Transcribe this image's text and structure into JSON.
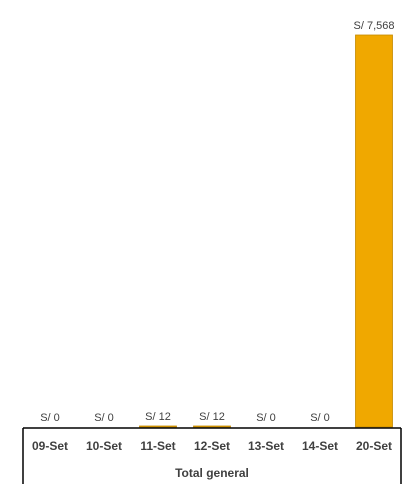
{
  "chart_data": {
    "type": "bar",
    "categories": [
      "09-Set",
      "10-Set",
      "11-Set",
      "12-Set",
      "13-Set",
      "14-Set",
      "20-Set"
    ],
    "values": [
      0,
      0,
      12,
      12,
      0,
      0,
      7568
    ],
    "data_labels": [
      "S/ 0",
      "S/ 0",
      "S/ 12",
      "S/ 12",
      "S/ 0",
      "S/ 0",
      "S/ 7,568"
    ],
    "group_label": "Total general",
    "title": "",
    "xlabel": "",
    "ylabel": "",
    "ylim": [
      0,
      7568
    ],
    "grid": false,
    "legend": "none",
    "bar_color": "#F0A800",
    "bar_border_color": "#C58A00"
  }
}
